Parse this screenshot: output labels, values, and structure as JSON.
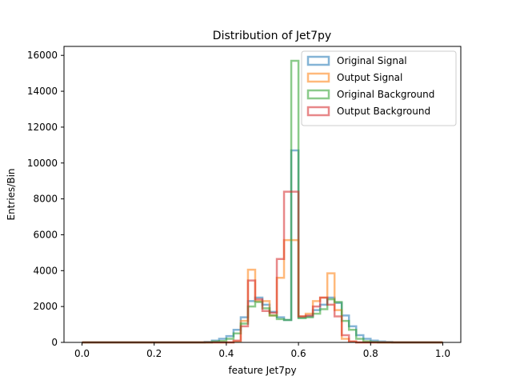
{
  "chart_data": {
    "type": "step-histogram",
    "title": "Distribution of Jet7py",
    "xlabel": "feature Jet7py",
    "ylabel": "Entries/Bin",
    "xlim": [
      -0.05,
      1.05
    ],
    "ylim": [
      0,
      16500
    ],
    "xticks": [
      0.0,
      0.2,
      0.4,
      0.6,
      0.8,
      1.0
    ],
    "xtick_labels": [
      "0.0",
      "0.2",
      "0.4",
      "0.6",
      "0.8",
      "1.0"
    ],
    "yticks": [
      0,
      2000,
      4000,
      6000,
      8000,
      10000,
      12000,
      14000,
      16000
    ],
    "ytick_labels": [
      "0",
      "2000",
      "4000",
      "6000",
      "8000",
      "10000",
      "12000",
      "14000",
      "16000"
    ],
    "legend_position": "upper right",
    "grid": false,
    "bin_edges_range": [
      0.0,
      1.0
    ],
    "bin_width": 0.02,
    "series": [
      {
        "name": "Original Signal",
        "color": "#1f77b4",
        "values": [
          0,
          0,
          0,
          0,
          0,
          0,
          0,
          0,
          0,
          0,
          0,
          0,
          0,
          0,
          0,
          0,
          0,
          30,
          100,
          200,
          350,
          700,
          1400,
          2300,
          2500,
          2100,
          1700,
          1400,
          1250,
          10700,
          1400,
          1450,
          1800,
          2100,
          2500,
          2200,
          1500,
          900,
          400,
          200,
          100,
          50,
          20,
          0,
          0,
          0,
          0,
          0,
          0,
          0
        ]
      },
      {
        "name": "Output Signal",
        "color": "#ff7f0e",
        "values": [
          0,
          0,
          0,
          0,
          0,
          0,
          0,
          0,
          0,
          0,
          0,
          0,
          0,
          0,
          0,
          0,
          0,
          0,
          0,
          0,
          0,
          50,
          1200,
          4050,
          2300,
          2300,
          1500,
          3600,
          5700,
          5700,
          1450,
          1600,
          2300,
          2500,
          3850,
          1800,
          200,
          50,
          0,
          0,
          0,
          0,
          0,
          0,
          0,
          0,
          0,
          0,
          0,
          0
        ]
      },
      {
        "name": "Original Background",
        "color": "#2ca02c",
        "values": [
          0,
          0,
          0,
          0,
          0,
          0,
          0,
          0,
          0,
          0,
          0,
          0,
          0,
          0,
          0,
          0,
          0,
          0,
          50,
          80,
          200,
          500,
          1050,
          2000,
          2250,
          1900,
          1500,
          1300,
          1250,
          15700,
          1350,
          1400,
          1600,
          1850,
          2400,
          2250,
          1200,
          700,
          200,
          60,
          20,
          0,
          0,
          0,
          0,
          0,
          0,
          0,
          0,
          0
        ]
      },
      {
        "name": "Output Background",
        "color": "#d62728",
        "values": [
          0,
          0,
          0,
          0,
          0,
          0,
          0,
          0,
          0,
          0,
          0,
          0,
          0,
          0,
          0,
          0,
          0,
          0,
          0,
          0,
          0,
          100,
          900,
          3450,
          2400,
          1750,
          1650,
          4650,
          8400,
          8400,
          1450,
          1500,
          2000,
          2500,
          2100,
          1450,
          400,
          50,
          0,
          0,
          0,
          0,
          0,
          0,
          0,
          0,
          0,
          0,
          0,
          0
        ]
      }
    ]
  }
}
